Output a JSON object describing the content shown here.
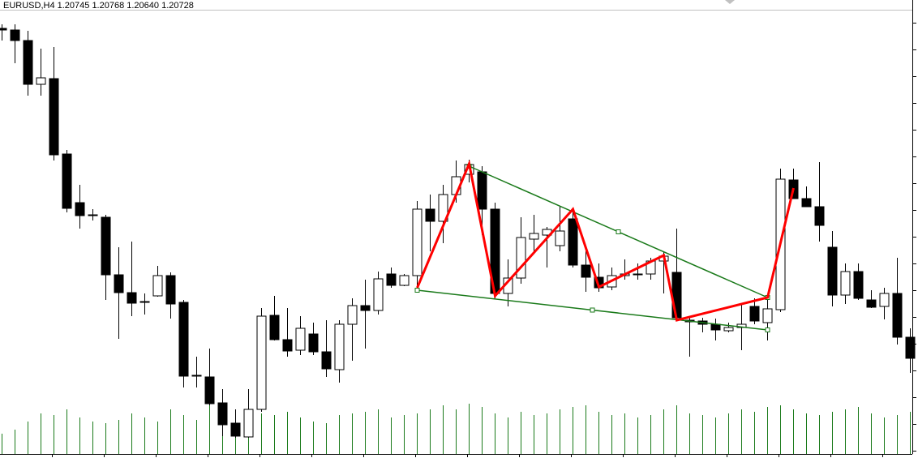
{
  "chart_data": {
    "type": "candlestick",
    "title": "EURUSD,H4  1.20745 1.20768 1.20640 1.20728",
    "open": [
      530,
      528,
      515,
      461,
      468,
      375,
      315,
      299,
      297,
      226,
      204,
      193,
      200,
      225,
      192,
      102,
      100,
      68,
      43,
      26,
      60,
      176,
      146,
      133,
      153,
      131,
      109,
      165,
      188,
      182,
      227,
      213,
      225,
      307,
      292,
      325,
      350,
      353,
      307,
      203,
      222,
      270,
      275,
      262,
      295,
      238,
      223,
      211,
      225,
      227,
      227,
      243,
      229,
      170,
      169,
      165,
      157,
      161,
      187,
      167,
      183,
      343,
      320,
      310,
      260,
      201,
      230,
      195,
      187,
      203,
      149
    ],
    "high": [
      535,
      535,
      527,
      505,
      507,
      380,
      337,
      307,
      300,
      260,
      267,
      203,
      237,
      229,
      195,
      125,
      135,
      85,
      60,
      85,
      185,
      200,
      185,
      175,
      167,
      170,
      170,
      197,
      220,
      230,
      235,
      227,
      317,
      325,
      337,
      367,
      368,
      360,
      315,
      245,
      297,
      300,
      285,
      310,
      303,
      255,
      240,
      235,
      245,
      240,
      247,
      255,
      283,
      175,
      173,
      172,
      167,
      190,
      197,
      200,
      357,
      357,
      335,
      365,
      280,
      240,
      240,
      207,
      210,
      247,
      160
    ],
    "low": [
      515,
      487,
      447,
      447,
      367,
      303,
      283,
      293,
      195,
      147,
      175,
      177,
      199,
      172,
      87,
      87,
      65,
      27,
      25,
      25,
      57,
      145,
      125,
      127,
      127,
      100,
      93,
      120,
      135,
      177,
      210,
      212,
      207,
      255,
      265,
      315,
      340,
      275,
      197,
      187,
      215,
      255,
      235,
      255,
      235,
      205,
      205,
      207,
      220,
      220,
      220,
      203,
      170,
      125,
      155,
      145,
      155,
      133,
      165,
      145,
      180,
      320,
      310,
      267,
      187,
      190,
      195,
      185,
      171,
      140,
      105
    ],
    "close": [
      528,
      515,
      461,
      469,
      374,
      308,
      299,
      300,
      226,
      204,
      191,
      193,
      225,
      190,
      101,
      101,
      67,
      41,
      27,
      60,
      175,
      146,
      132,
      160,
      131,
      110,
      165,
      188,
      182,
      221,
      213,
      225,
      307,
      292,
      325,
      347,
      362,
      307,
      203,
      222,
      272,
      277,
      282,
      280,
      238,
      223,
      210,
      225,
      227,
      227,
      243,
      249,
      173,
      168,
      165,
      158,
      161,
      165,
      169,
      184,
      344,
      320,
      310,
      287,
      201,
      230,
      197,
      186,
      203,
      149,
      123
    ],
    "volume": [
      25,
      30,
      40,
      50,
      48,
      55,
      45,
      40,
      38,
      42,
      50,
      45,
      40,
      55,
      48,
      42,
      60,
      50,
      45,
      55,
      50,
      48,
      52,
      45,
      40,
      38,
      48,
      50,
      52,
      55,
      45,
      48,
      50,
      55,
      60,
      55,
      62,
      58,
      50,
      45,
      52,
      48,
      50,
      55,
      58,
      60,
      52,
      48,
      50,
      45,
      48,
      55,
      60,
      50,
      48,
      45,
      50,
      55,
      52,
      58,
      60,
      55,
      50,
      48,
      52,
      55,
      58,
      50,
      45,
      48,
      52
    ],
    "ylim": [
      0,
      565
    ],
    "volume_lim": [
      0,
      100
    ],
    "up_color": "#ffffff",
    "down_color": "#000000",
    "volume_color": "#1a7a1a",
    "zigzag": {
      "color": "#ff0000",
      "x": [
        32,
        36,
        38,
        44,
        46,
        51,
        52,
        59,
        61
      ],
      "values": [
        210,
        363,
        200,
        307,
        211,
        250,
        170,
        198,
        333
      ]
    },
    "channel": {
      "color": "#1a7a1a",
      "lines": [
        {
          "x": [
            36,
            59
          ],
          "values": [
            360,
            198
          ]
        },
        {
          "x": [
            32,
            59
          ],
          "values": [
            207,
            158
          ]
        }
      ]
    }
  }
}
